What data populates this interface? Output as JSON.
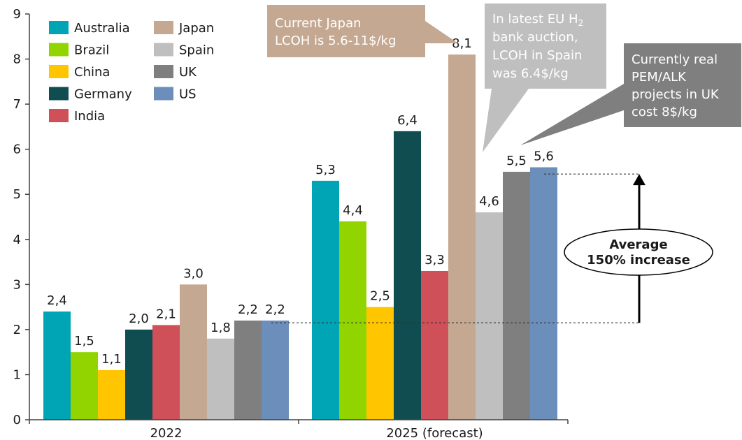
{
  "chart_data": {
    "type": "bar",
    "categories": [
      "2022",
      "2025 (forecast)"
    ],
    "series": [
      {
        "name": "Australia",
        "color": "#00A5B5",
        "values": [
          2.4,
          5.3
        ],
        "labels": [
          "2,4",
          "5,3"
        ]
      },
      {
        "name": "Brazil",
        "color": "#92D400",
        "values": [
          1.5,
          4.4
        ],
        "labels": [
          "1,5",
          "4,4"
        ]
      },
      {
        "name": "China",
        "color": "#FFC600",
        "values": [
          1.1,
          2.5
        ],
        "labels": [
          "1,1",
          "2,5"
        ]
      },
      {
        "name": "Germany",
        "color": "#0F4D50",
        "values": [
          2.0,
          6.4
        ],
        "labels": [
          "2,0",
          "6,4"
        ]
      },
      {
        "name": "India",
        "color": "#CF5059",
        "values": [
          2.1,
          3.3
        ],
        "labels": [
          "2,1",
          "3,3"
        ]
      },
      {
        "name": "Japan",
        "color": "#C4A891",
        "values": [
          3.0,
          8.1
        ],
        "labels": [
          "3,0",
          "8,1"
        ]
      },
      {
        "name": "Spain",
        "color": "#BFBFBF",
        "values": [
          1.8,
          4.6
        ],
        "labels": [
          "1,8",
          "4,6"
        ]
      },
      {
        "name": "UK",
        "color": "#7F7F7F",
        "values": [
          2.2,
          5.5
        ],
        "labels": [
          "2,2",
          "5,5"
        ]
      },
      {
        "name": "US",
        "color": "#6C8EBB",
        "values": [
          2.2,
          5.6
        ],
        "labels": [
          "2,2",
          "5,6"
        ]
      }
    ],
    "yticks": [
      0,
      1,
      2,
      3,
      4,
      5,
      6,
      7,
      8,
      9
    ],
    "ylim": [
      0,
      9
    ],
    "title": "",
    "xlabel": "",
    "ylabel": "",
    "grid": false,
    "legend_position": "top-left",
    "annotations": {
      "japan": {
        "lines": [
          "Current Japan",
          "LCOH is 5.6-11$/kg"
        ],
        "color": "#C4A891"
      },
      "spain": {
        "lines": [
          "In latest EU H",
          "bank auction,",
          "LCOH in Spain",
          "was 6.4$/kg"
        ],
        "subscript": "2",
        "color": "#BFBFBF"
      },
      "uk": {
        "lines": [
          "Currently real",
          "PEM/ALK",
          "projects in UK",
          "cost 8$/kg"
        ],
        "color": "#7F7F7F"
      },
      "average": {
        "lines": [
          "Average",
          "150% increase"
        ]
      }
    }
  }
}
